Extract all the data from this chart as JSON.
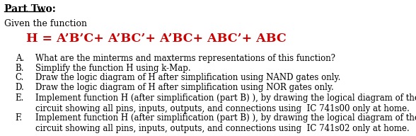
{
  "part_two": "Part Two:",
  "given_text": "Given the function",
  "function_line": "H = A’B’C+ A’BC’+ A’BC+ ABC’+ ABC",
  "items": [
    "What are the minterms and maxterms representations of this function?",
    "Simplify the function H using k-Map.",
    "Draw the logic diagram of H after simplification using NAND gates only.",
    "Draw the logic diagram of H after simplification using NOR gates only.",
    "Implement function H (after simplification (part B) ), by drawing the logical diagram of the\ncircuit showing all pins, inputs, outputs, and connections using  IC 741s00 only at home.",
    "Implement function H (after simplification (part B) ), by drawing the logical diagram of the\ncircuit showing all pins, inputs, outputs, and connections using  IC 741s02 only at home."
  ],
  "labels": [
    "A.",
    "B.",
    "C.",
    "D.",
    "E.",
    "F."
  ],
  "bg_color": "#ffffff",
  "text_color": "#000000",
  "red_color": "#cc0000",
  "body_fontsize": 8.5,
  "title_fontsize": 10.0,
  "function_fontsize": 12.5,
  "given_fontsize": 9.0
}
